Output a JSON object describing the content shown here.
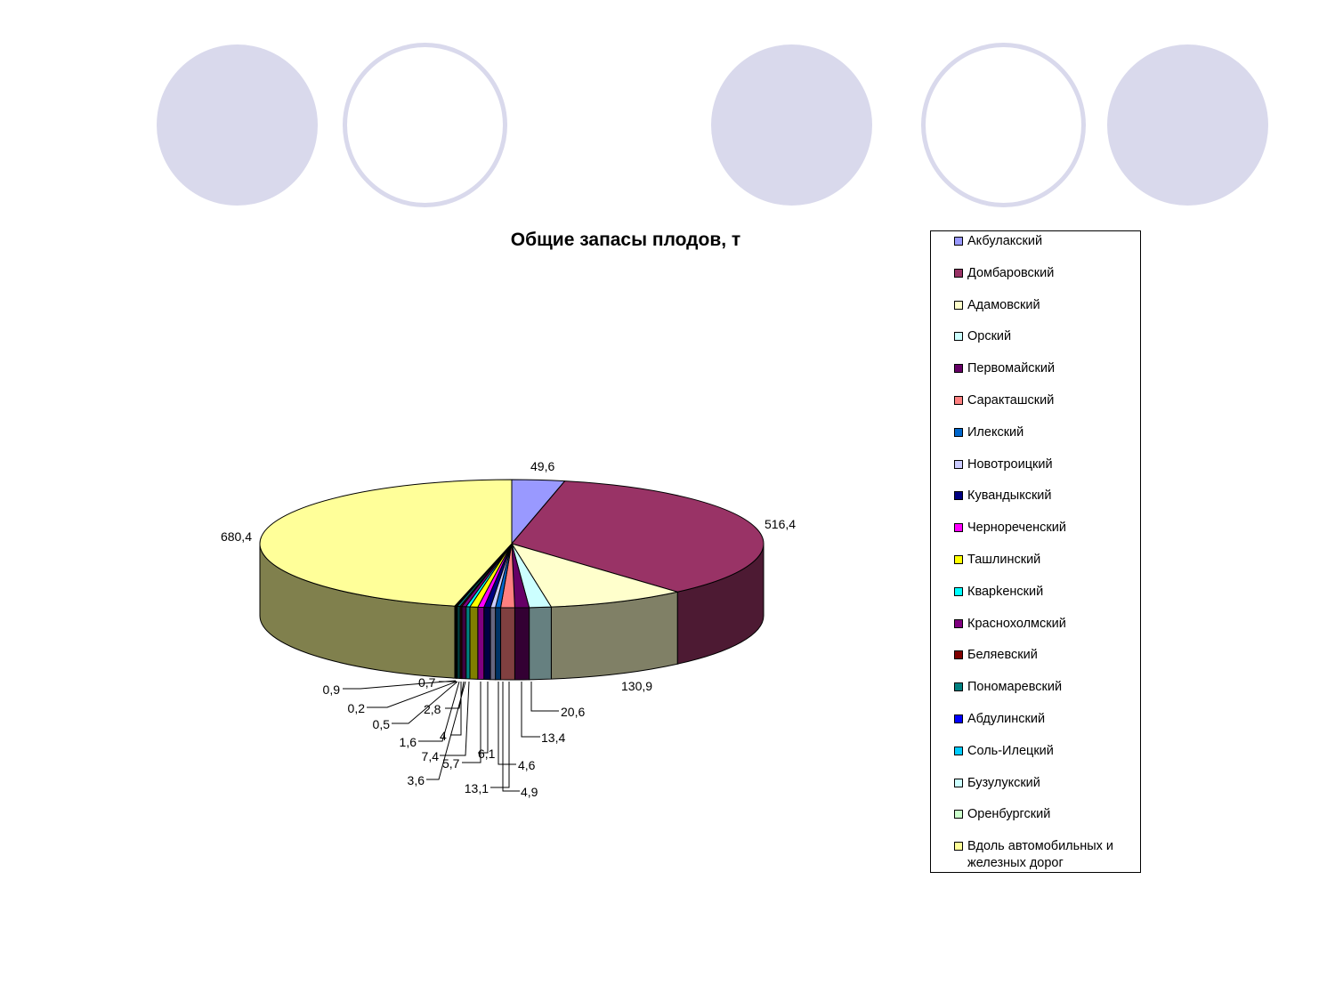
{
  "decorations": {
    "circles": [
      {
        "style": "filled"
      },
      {
        "style": "ring"
      },
      {
        "style": "filled"
      },
      {
        "style": "ring"
      },
      {
        "style": "filled"
      }
    ],
    "colors": {
      "fill": "#d9d9ec",
      "ring_border": "#d9d9ec"
    }
  },
  "chart_data": {
    "type": "pie",
    "title": "Общие запасы плодов, т",
    "style": "3d",
    "legend_position": "right",
    "start_angle": "12 o'clock, clockwise",
    "slices": [
      {
        "name": "Акбулакский",
        "value": 49.6,
        "label": "49,6",
        "color": "#9999ff",
        "side": "#5c5c99"
      },
      {
        "name": "Домбаровский",
        "value": 516.4,
        "label": "516,4",
        "color": "#993366",
        "side": "#4d1a33"
      },
      {
        "name": "Адамовский",
        "value": 130.9,
        "label": "130,9",
        "color": "#ffffcc",
        "side": "#808066"
      },
      {
        "name": "Орский",
        "value": 20.6,
        "label": "20,6",
        "color": "#ccffff",
        "side": "#668080"
      },
      {
        "name": "Первомайский",
        "value": 13.4,
        "label": "13,4",
        "color": "#660066",
        "side": "#330033"
      },
      {
        "name": "Саракташский",
        "value": 13.1,
        "label": "13,1",
        "color": "#ff8080",
        "side": "#804040"
      },
      {
        "name": "Илекский",
        "value": 4.9,
        "label": "4,9",
        "color": "#0066cc",
        "side": "#003366"
      },
      {
        "name": "Новотроицкий",
        "value": 4.6,
        "label": "4,6",
        "color": "#ccccff",
        "side": "#666680"
      },
      {
        "name": "Кувандыкский",
        "value": 6.1,
        "label": "6,1",
        "color": "#000080",
        "side": "#000040"
      },
      {
        "name": "Черноречeнский",
        "value": 5.7,
        "label": "5,7",
        "color": "#ff00ff",
        "side": "#800080"
      },
      {
        "name": "Ташлинский",
        "value": 7.4,
        "label": "7,4",
        "color": "#ffff00",
        "side": "#808000"
      },
      {
        "name": "Кварkенский",
        "value": 3.6,
        "label": "3,6",
        "color": "#00ffff",
        "side": "#008080"
      },
      {
        "name": "Краснохолмский",
        "value": 4,
        "label": "4",
        "color": "#800080",
        "side": "#400040"
      },
      {
        "name": "Беляевский",
        "value": 1.6,
        "label": "1,6",
        "color": "#800000",
        "side": "#400000"
      },
      {
        "name": "Пономаревский",
        "value": 2.8,
        "label": "2,8",
        "color": "#008080",
        "side": "#004040"
      },
      {
        "name": "Абдулинский",
        "value": 0.5,
        "label": "0,5",
        "color": "#0000ff",
        "side": "#000080"
      },
      {
        "name": "Соль-Илецкий",
        "value": 0.2,
        "label": "0,2",
        "color": "#00ccff",
        "side": "#006680"
      },
      {
        "name": "Бузулукский",
        "value": 0.7,
        "label": "0,7",
        "color": "#ccffff",
        "side": "#668080"
      },
      {
        "name": "Оренбургский",
        "value": 0.9,
        "label": "0,9",
        "color": "#ccffcc",
        "side": "#668066"
      },
      {
        "name": "Вдоль автомобильных и железных дорог",
        "value": 680.4,
        "label": "680,4",
        "color": "#ffff99",
        "side": "#80804d"
      }
    ]
  }
}
